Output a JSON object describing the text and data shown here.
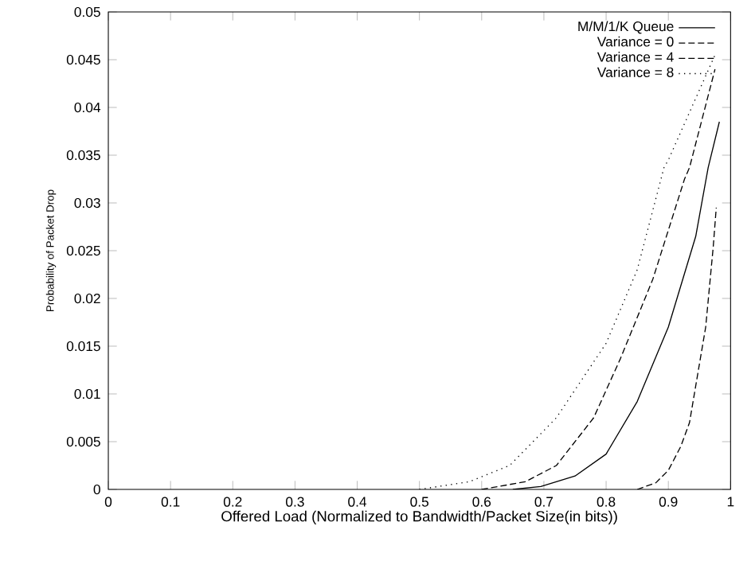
{
  "chart_data": {
    "type": "line",
    "xlabel": "Offered Load (Normalized to Bandwidth/Packet Size(in bits))",
    "ylabel": "Probability of Packet Drop",
    "xlim": [
      0,
      1
    ],
    "xticks": [
      0,
      0.1,
      0.2,
      0.3,
      0.4,
      0.5,
      0.6,
      0.7,
      0.8,
      0.9,
      1
    ],
    "ylim": [
      0,
      0.05
    ],
    "yticks": [
      0,
      0.005,
      0.01,
      0.015,
      0.02,
      0.025,
      0.03,
      0.035,
      0.04,
      0.045,
      0.05
    ],
    "legend": "top right",
    "grid": false,
    "marker": "none",
    "series": [
      {
        "name": "M/M/1/K Queue",
        "color": "#000000",
        "line_style": "solid",
        "x": [
          0.65,
          0.695,
          0.75,
          0.8,
          0.85,
          0.9,
          0.944,
          0.964,
          0.982
        ],
        "values": [
          0,
          0.0003,
          0.0014,
          0.0037,
          0.0092,
          0.017,
          0.0265,
          0.0337,
          0.0385
        ]
      },
      {
        "name": "Variance = 0",
        "color": "#000000",
        "line_style": "dashed",
        "x": [
          0.85,
          0.88,
          0.9,
          0.92,
          0.934,
          0.96,
          0.972,
          0.977
        ],
        "values": [
          0,
          0.0007,
          0.002,
          0.0045,
          0.007,
          0.017,
          0.0253,
          0.0295
        ]
      },
      {
        "name": "Variance = 4",
        "color": "#000000",
        "line_style": "dashed",
        "x": [
          0.6,
          0.67,
          0.72,
          0.78,
          0.823,
          0.875,
          0.926,
          0.934,
          0.975
        ],
        "values": [
          0,
          0.0008,
          0.0025,
          0.0075,
          0.0137,
          0.022,
          0.0325,
          0.0337,
          0.044
        ]
      },
      {
        "name": "Variance = 8",
        "color": "#000000",
        "line_style": "dotted",
        "x": [
          0.5,
          0.58,
          0.645,
          0.72,
          0.8,
          0.85,
          0.893,
          0.9,
          0.975
        ],
        "values": [
          0,
          0.0008,
          0.0025,
          0.0075,
          0.0153,
          0.023,
          0.0337,
          0.0345,
          0.0455
        ]
      }
    ]
  }
}
